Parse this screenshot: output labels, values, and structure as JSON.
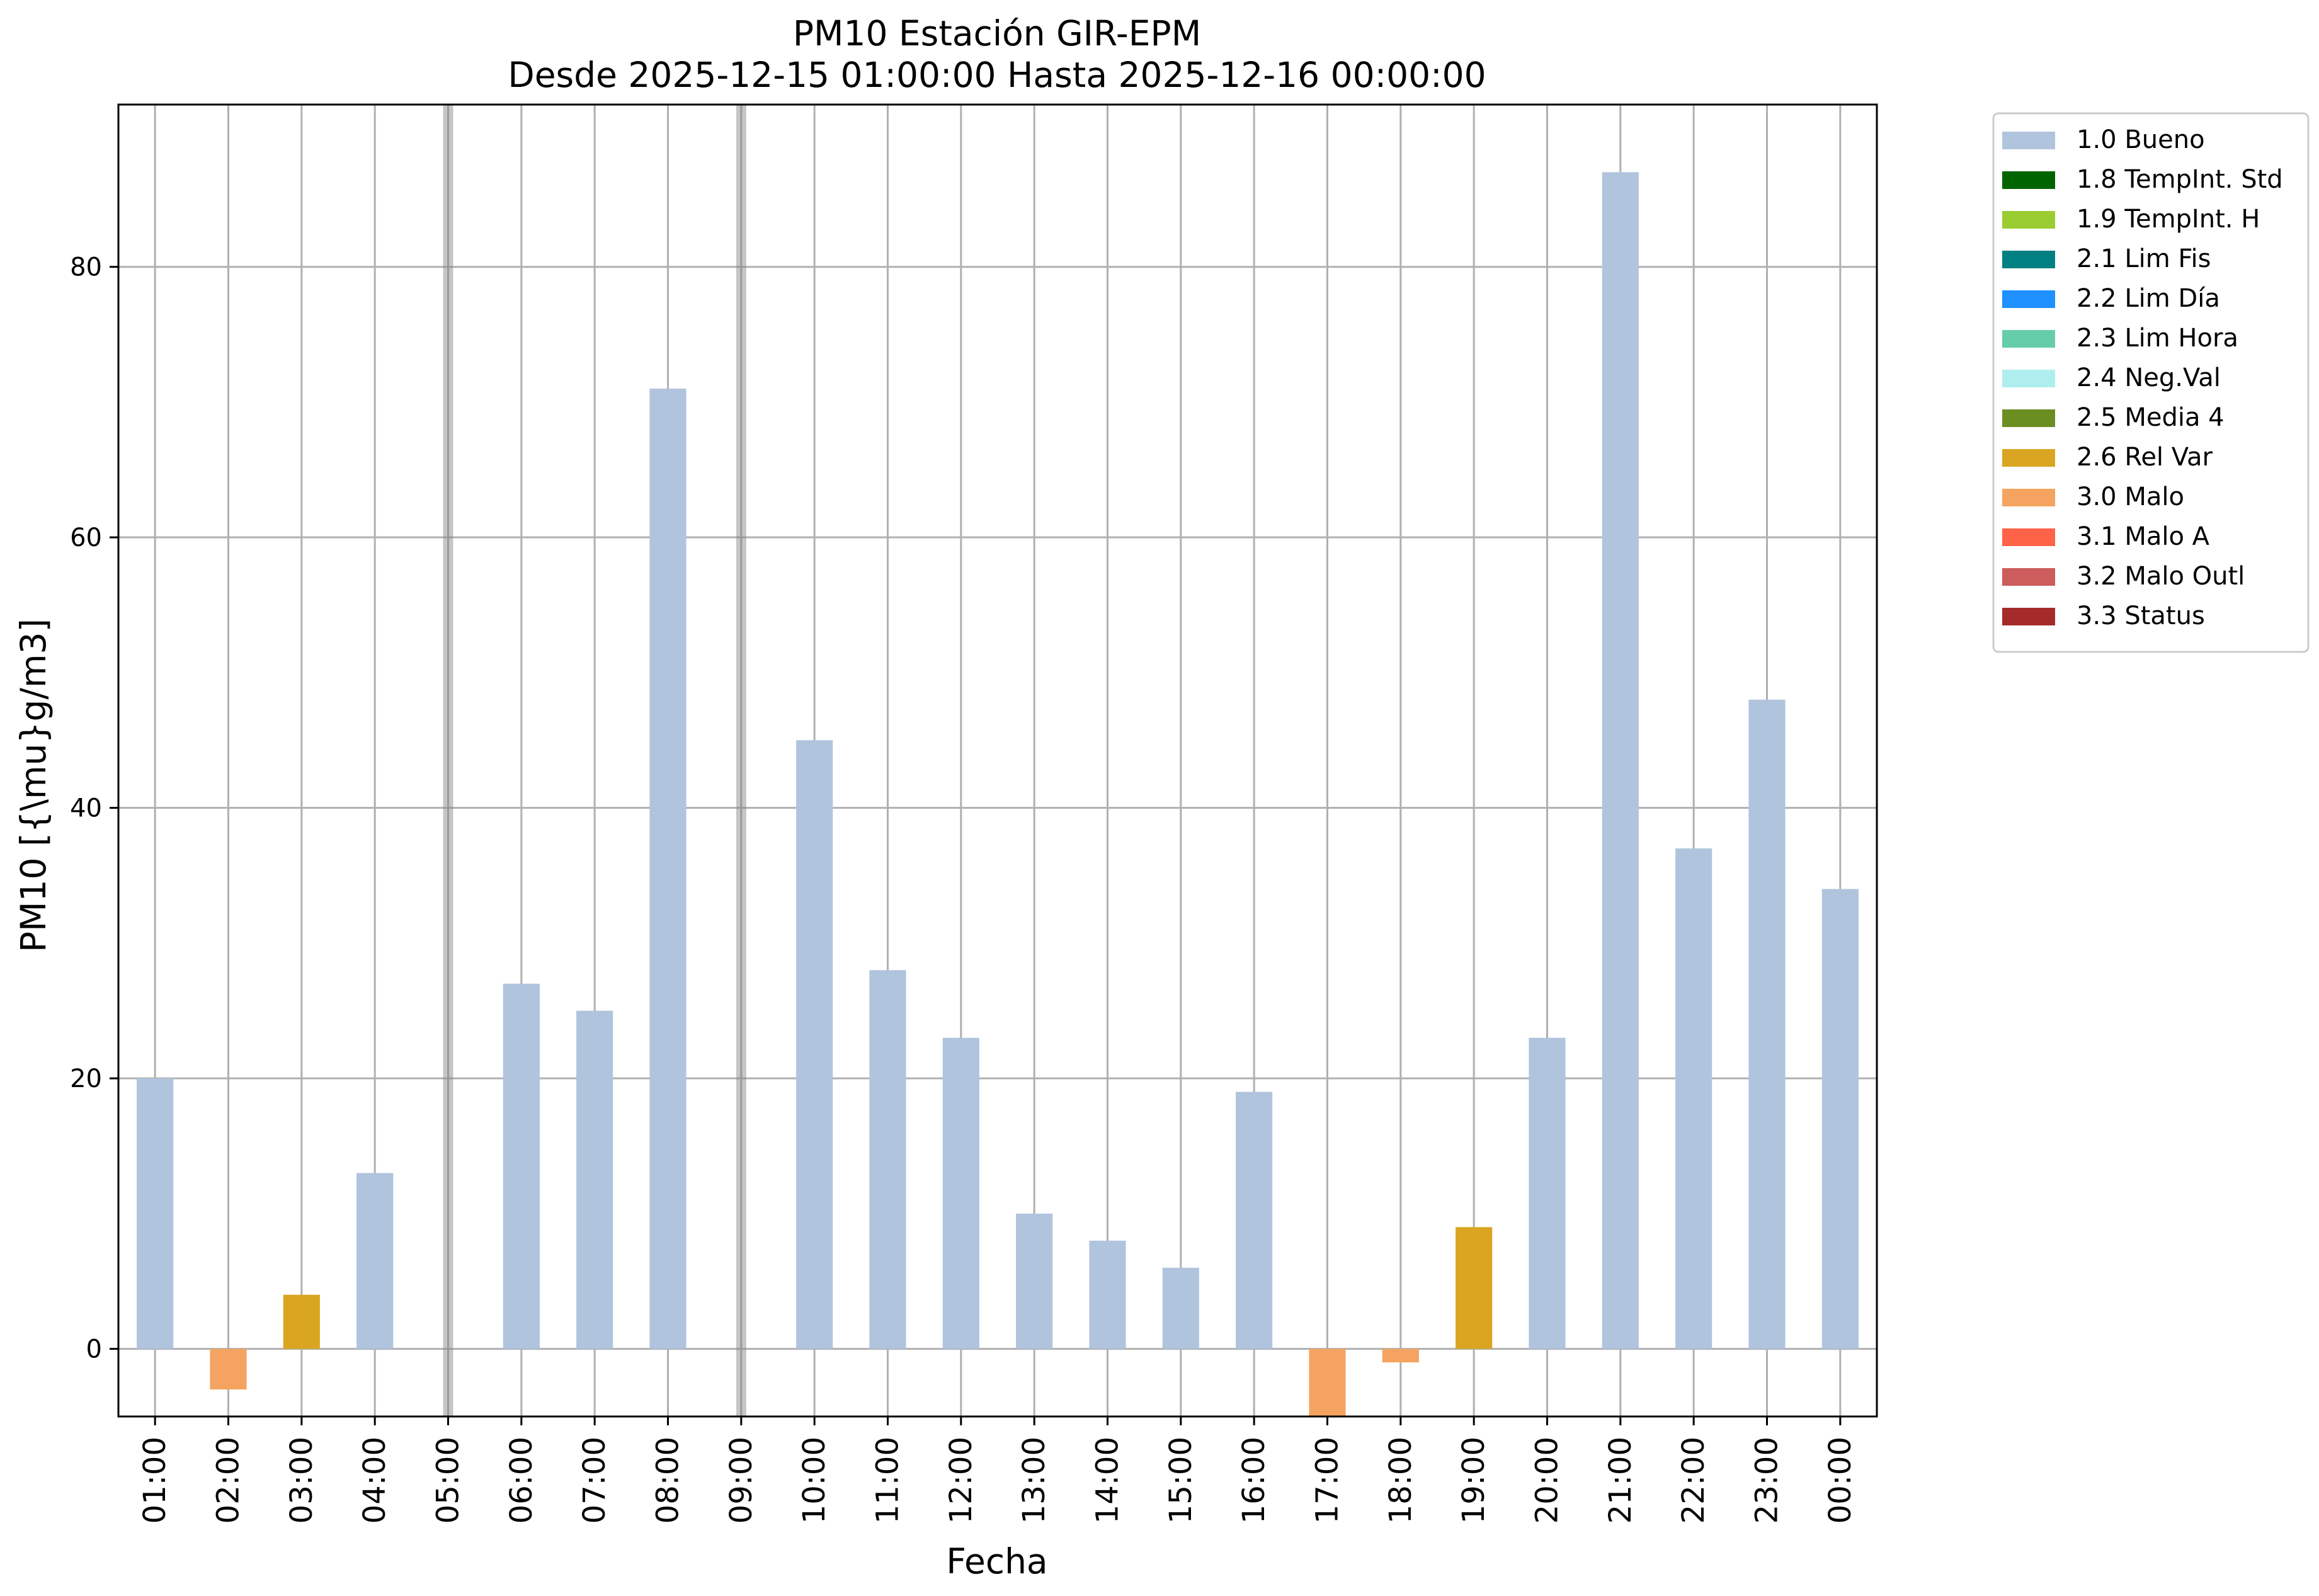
{
  "chart_data": {
    "type": "bar",
    "title": "PM10 Estación GIR-EPM",
    "subtitle": "Desde 2025-12-15 01:00:00 Hasta 2025-12-16 00:00:00",
    "xlabel": "Fecha",
    "ylabel": "PM10 [{\\mu}g/m3]",
    "ylim": [
      -5,
      92
    ],
    "yticks": [
      0,
      20,
      40,
      60,
      80
    ],
    "grid": true,
    "legend_position": "outside-right",
    "categories": [
      "01:00",
      "02:00",
      "03:00",
      "04:00",
      "05:00",
      "06:00",
      "07:00",
      "08:00",
      "09:00",
      "10:00",
      "11:00",
      "12:00",
      "13:00",
      "14:00",
      "15:00",
      "16:00",
      "17:00",
      "18:00",
      "19:00",
      "20:00",
      "21:00",
      "22:00",
      "23:00",
      "00:00"
    ],
    "values": [
      20,
      -3,
      4,
      13,
      null,
      27,
      25,
      71,
      null,
      45,
      28,
      23,
      10,
      8,
      6,
      19,
      -5,
      -1,
      9,
      23,
      87,
      37,
      48,
      34
    ],
    "flags": [
      "1.0 Bueno",
      "3.0 Malo",
      "2.6 Rel Var",
      "1.0 Bueno",
      null,
      "1.0 Bueno",
      "1.0 Bueno",
      "1.0 Bueno",
      null,
      "1.0 Bueno",
      "1.0 Bueno",
      "1.0 Bueno",
      "1.0 Bueno",
      "1.0 Bueno",
      "1.0 Bueno",
      "1.0 Bueno",
      "3.0 Malo",
      "3.0 Malo",
      "2.6 Rel Var",
      "1.0 Bueno",
      "1.0 Bueno",
      "1.0 Bueno",
      "1.0 Bueno",
      "1.0 Bueno"
    ],
    "missing_markers": [
      "05:00",
      "09:00"
    ],
    "legend": [
      {
        "label": "1.0 Bueno",
        "color": "#B0C4DE"
      },
      {
        "label": "1.8 TempInt. Std",
        "color": "#006400"
      },
      {
        "label": "1.9 TempInt. H",
        "color": "#9ACD32"
      },
      {
        "label": "2.1 Lim Fis",
        "color": "#008080"
      },
      {
        "label": "2.2 Lim Día",
        "color": "#1E90FF"
      },
      {
        "label": "2.3 Lim Hora",
        "color": "#66CDAA"
      },
      {
        "label": "2.4 Neg.Val",
        "color": "#AFEEEE"
      },
      {
        "label": "2.5 Media 4",
        "color": "#6B8E23"
      },
      {
        "label": "2.6 Rel Var",
        "color": "#DAA520"
      },
      {
        "label": "3.0 Malo",
        "color": "#F4A460"
      },
      {
        "label": "3.1 Malo A",
        "color": "#FF6347"
      },
      {
        "label": "3.2 Malo Outl",
        "color": "#CD5C5C"
      },
      {
        "label": "3.3 Status",
        "color": "#A52A2A"
      }
    ]
  }
}
